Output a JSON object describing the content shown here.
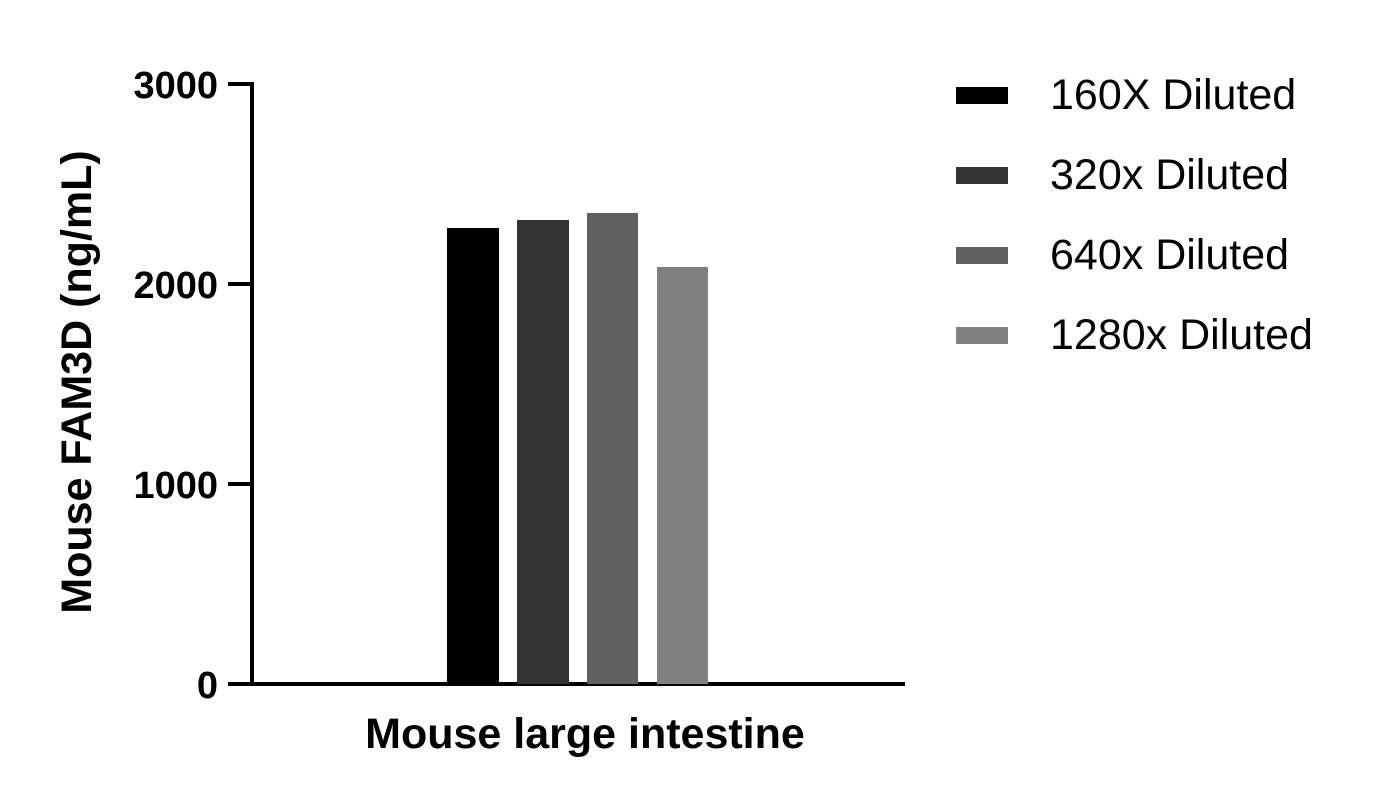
{
  "chart_data": {
    "type": "bar",
    "title": "",
    "xlabel": "Mouse large intestine",
    "ylabel": "Mouse FAM3D (ng/mL)",
    "ylim": [
      0,
      3000
    ],
    "yticks": [
      0,
      1000,
      2000,
      3000
    ],
    "grid": false,
    "legend_position": "right",
    "categories": [
      "Mouse large intestine"
    ],
    "series": [
      {
        "name": "160X Diluted",
        "values": [
          2280
        ],
        "color": "#000000"
      },
      {
        "name": "320x Diluted",
        "values": [
          2320
        ],
        "color": "#333333"
      },
      {
        "name": "640x Diluted",
        "values": [
          2355
        ],
        "color": "#606060"
      },
      {
        "name": "1280x Diluted",
        "values": [
          2085
        ],
        "color": "#808080"
      }
    ]
  },
  "axis": {
    "y_title": "Mouse FAM3D (ng/mL)",
    "x_title": "Mouse large intestine",
    "y_ticks": [
      "0",
      "1000",
      "2000",
      "3000"
    ]
  },
  "legend": {
    "items": [
      {
        "label": "160X Diluted",
        "color": "#000000"
      },
      {
        "label": "320x Diluted",
        "color": "#333333"
      },
      {
        "label": "640x Diluted",
        "color": "#606060"
      },
      {
        "label": "1280x Diluted",
        "color": "#808080"
      }
    ]
  }
}
